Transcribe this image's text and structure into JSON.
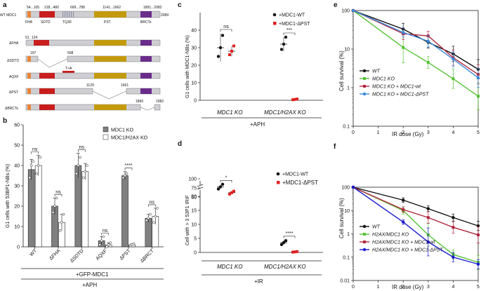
{
  "panel_labels": {
    "a": "a",
    "b": "b",
    "c": "c",
    "d": "d",
    "e": "e",
    "f": "f"
  },
  "colors": {
    "fha": "#e8843a",
    "sdtd": "#c81e1e",
    "tqxf": "#9aa7c4",
    "pst": "#c39a0e",
    "brct": "#6a2c8a",
    "body": "#cfcfd3",
    "mut": "#c81e1e",
    "wt": "#111111",
    "green": "#55c234",
    "maroon": "#b0263e",
    "blue": "#3a88d8",
    "navy": "#1a1ad0",
    "red": "#e02020",
    "gray_bar": "#808080",
    "white_bar": "#ffffff"
  },
  "panel_a": {
    "title": "WT MDC1",
    "positions_top": [
      {
        "text": "54...105",
        "key": "fha"
      },
      {
        "text": "218...480",
        "key": "sdtd"
      },
      {
        "text": "699...788",
        "key": "tqxf"
      },
      {
        "text": "1141...1662",
        "key": "pst"
      },
      {
        "text": "1891...2082",
        "key": "brct"
      }
    ],
    "end_num": "2089",
    "domain_labels": [
      "FHA",
      "SDTD",
      "TQXF",
      "PST",
      "BRCTs"
    ],
    "mutants": [
      {
        "name": "ΔFHA",
        "nums": [
          "51",
          "124"
        ]
      },
      {
        "name": "ΔSDTD",
        "nums": [
          "197",
          "508"
        ]
      },
      {
        "name": "AQXF",
        "nums": [
          "T>A"
        ]
      },
      {
        "name": "ΔPST",
        "nums": [
          "1129",
          "1661"
        ]
      },
      {
        "name": "ΔBRCTs",
        "nums": [
          "1890",
          "2082"
        ]
      }
    ]
  },
  "chart_data": [
    {
      "panel": "b",
      "type": "bar",
      "ylabel": "G1 cells with 53BP1-NBs (%)",
      "ylim": [
        0,
        60
      ],
      "yticks": [
        0,
        10,
        20,
        30,
        40,
        50,
        60
      ],
      "categories": [
        "WT",
        "ΔFHA",
        "ΔSDTD",
        "AQXF",
        "ΔPST",
        "ΔBRCT"
      ],
      "series": [
        {
          "name": "MDC1 KO",
          "values": [
            38,
            20,
            40,
            3,
            35,
            14
          ],
          "errors": [
            5,
            4,
            6,
            2,
            2,
            2
          ],
          "points": [
            [
              34,
              40,
              42
            ],
            [
              17,
              20,
              24
            ],
            [
              36,
              40,
              44
            ],
            [
              1,
              3,
              5
            ],
            [
              34,
              35,
              36
            ],
            [
              13,
              14,
              16
            ]
          ]
        },
        {
          "name": "MDC1/H2AX KO",
          "values": [
            40,
            12,
            37,
            1,
            1,
            15
          ],
          "errors": [
            5,
            4,
            4,
            1,
            0.5,
            4
          ],
          "points": [
            [
              36,
              40,
              44
            ],
            [
              8,
              12,
              16
            ],
            [
              34,
              37,
              40
            ],
            [
              0,
              1,
              2
            ],
            [
              0.5,
              1,
              1.5
            ],
            [
              12,
              15,
              19
            ]
          ]
        }
      ],
      "legend": [
        "MDC1 KO",
        "MDC1/H2AX KO"
      ],
      "significance": [
        {
          "cat": 0,
          "text": "ns"
        },
        {
          "cat": 1,
          "text": "ns"
        },
        {
          "cat": 2,
          "text": "ns"
        },
        {
          "cat": 3,
          "text": "ns"
        },
        {
          "cat": 4,
          "text": "****"
        },
        {
          "cat": 5,
          "text": "ns"
        }
      ],
      "footer": [
        "+GFP-MDC1",
        "+APH"
      ]
    },
    {
      "panel": "c",
      "type": "scatter",
      "ylabel": "G1 cells with MDC1-NBs (%)",
      "ylim": [
        0,
        50
      ],
      "yticks": [
        0,
        10,
        20,
        30,
        40
      ],
      "groups": [
        "MDC1 KO",
        "MDC1/H2AX KO"
      ],
      "series": [
        {
          "name": "+MDC1-WT",
          "marker": "circle",
          "points": [
            [
              25,
              30,
              37
            ],
            [
              29,
              32,
              36
            ]
          ],
          "means": [
            30,
            32
          ],
          "errors": [
            8,
            4
          ]
        },
        {
          "name": "+MDC1-ΔPST",
          "marker": "square",
          "points": [
            [
              26,
              28,
              31
            ],
            [
              0.3,
              0.5,
              0.7
            ]
          ],
          "means": [
            28,
            0.5
          ],
          "errors": [
            3,
            0.3
          ]
        }
      ],
      "significance": [
        {
          "group": 0,
          "text": "ns"
        },
        {
          "group": 1,
          "text": "***"
        }
      ],
      "footer": "+APH"
    },
    {
      "panel": "d",
      "type": "scatter",
      "ylabel": "Cell with > 3 53P1 IRIF",
      "ylim": [
        0,
        100
      ],
      "yticks": [
        0,
        5,
        10,
        15,
        20,
        50,
        75,
        100
      ],
      "axis_break": [
        20,
        50
      ],
      "groups": [
        "MDC1 KO",
        "MDC1/H2AX KO"
      ],
      "series": [
        {
          "name": "+MDC1-WT",
          "marker": "circle",
          "points": [
            [
              72,
              78,
              85
            ],
            [
              2.8,
              3.5,
              4.2
            ]
          ],
          "means": [
            78,
            3.5
          ],
          "errors": [
            6,
            0.8
          ]
        },
        {
          "name": "+MDC1-ΔPST",
          "marker": "square",
          "points": [
            [
              58,
              62,
              66
            ],
            [
              0.1,
              0.2,
              0.3
            ]
          ],
          "means": [
            62,
            0.2
          ],
          "errors": [
            4,
            0.1
          ]
        }
      ],
      "significance": [
        {
          "group": 0,
          "text": "*"
        },
        {
          "group": 1,
          "text": "****"
        }
      ],
      "footer": "+IR"
    },
    {
      "panel": "e",
      "type": "line",
      "xlabel": "IR dose (Gy)",
      "ylabel": "Cell survival (%)",
      "x": [
        0,
        2,
        3,
        4,
        5
      ],
      "xticks": [
        0,
        1,
        2,
        3,
        4,
        5
      ],
      "yscale": "log",
      "ylim": [
        0.1,
        100
      ],
      "yticks": [
        "0.1",
        "1",
        "10",
        "100"
      ],
      "series": [
        {
          "name": "WT",
          "key": "wt",
          "marker": "circle",
          "values": [
            100,
            33,
            15,
            7.5,
            3
          ],
          "errors": [
            0,
            0.15,
            0.15,
            0.2,
            0.25
          ]
        },
        {
          "name": "MDC1 KO",
          "key": "green",
          "marker": "square",
          "values": [
            100,
            11,
            4.5,
            1.7,
            0.6
          ],
          "errors": [
            0,
            0.4,
            0.15,
            0.25,
            0.35
          ]
        },
        {
          "name": "MDC1 KO + MDC1-wt",
          "key": "maroon",
          "marker": "square",
          "values": [
            100,
            25,
            22,
            6,
            2.2
          ],
          "errors": [
            0,
            0.15,
            0.12,
            0.2,
            0.25
          ]
        },
        {
          "name": "MDC1 KO + MDC1-ΔPST",
          "key": "blue",
          "marker": "circle",
          "values": [
            100,
            27,
            16,
            5.5,
            1.8
          ],
          "errors": [
            0,
            0.12,
            0.15,
            0.2,
            0.25
          ]
        }
      ]
    },
    {
      "panel": "f",
      "type": "line",
      "xlabel": "IR dose (Gy)",
      "ylabel": "Cell survival (%)",
      "x": [
        0,
        2,
        3,
        4,
        5
      ],
      "xticks": [
        0,
        1,
        2,
        3,
        4,
        5
      ],
      "yscale": "log",
      "ylim": [
        0.01,
        100
      ],
      "yticks": [
        "0.01",
        "0.1",
        "1",
        "10",
        "100"
      ],
      "series": [
        {
          "name": "WT",
          "key": "wt",
          "marker": "circle",
          "values": [
            100,
            28,
            12,
            5,
            2.2
          ],
          "errors": [
            0,
            0.1,
            0.12,
            0.15,
            0.2
          ]
        },
        {
          "name": "H2AX/MDC1 KO",
          "key": "green",
          "marker": "square",
          "values": [
            100,
            10,
            0.9,
            0.13,
            0.06
          ],
          "errors": [
            0,
            0.15,
            0.5,
            0.2,
            0.3
          ]
        },
        {
          "name": "H2AX/MDC1 KO + MDC1-wt",
          "key": "maroon",
          "marker": "square",
          "values": [
            100,
            11,
            5,
            1.9,
            0.9
          ],
          "errors": [
            0,
            0.12,
            0.25,
            0.25,
            0.35
          ]
        },
        {
          "name": "H2AX/MDC1 KO + MDC1-ΔPST",
          "key": "navy",
          "marker": "circle",
          "values": [
            100,
            3.2,
            0.45,
            0.1,
            0.05
          ],
          "errors": [
            0,
            0.1,
            0.6,
            0.2,
            0.2
          ]
        }
      ]
    }
  ]
}
